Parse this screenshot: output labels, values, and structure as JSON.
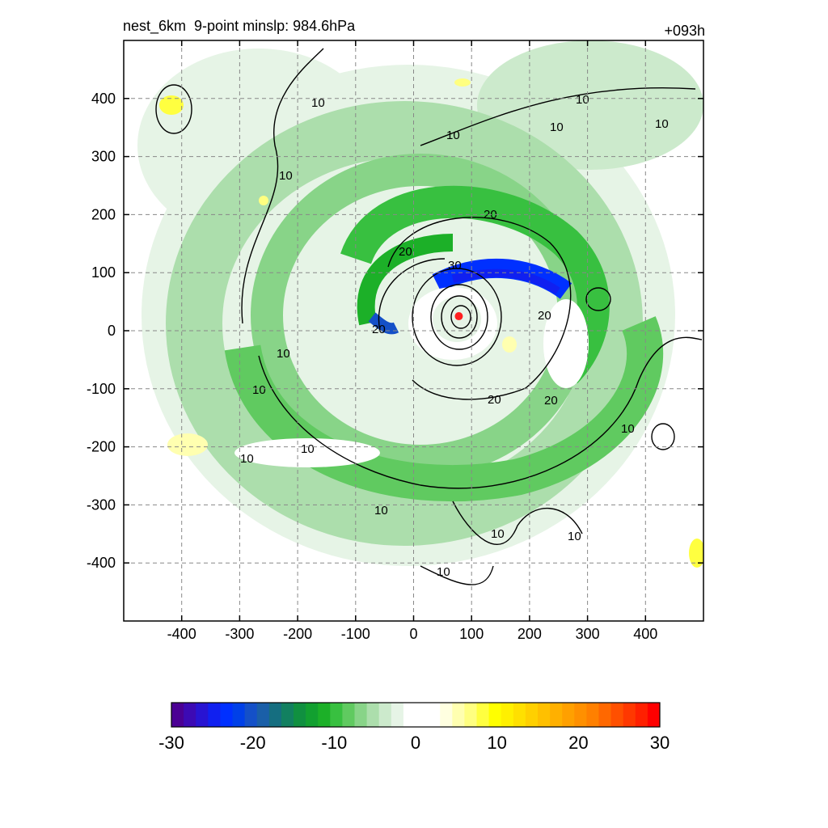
{
  "header": {
    "title": "nest_6km  9-point minslp: 984.6hPa",
    "forecast_hour": "+093h"
  },
  "chart_data": {
    "type": "heatmap",
    "xlim": [
      -500,
      500
    ],
    "ylim": [
      -500,
      500
    ],
    "x_ticks": [
      -400,
      -300,
      -200,
      -100,
      0,
      100,
      200,
      300,
      400
    ],
    "y_ticks": [
      -400,
      -300,
      -200,
      -100,
      0,
      100,
      200,
      300,
      400
    ],
    "grid": true,
    "grid_style": "dashed",
    "center_marker": {
      "x": 78,
      "y": 25,
      "color": "#ff2020"
    },
    "contour_labels": [
      "10",
      "20",
      "30"
    ],
    "colorbar": {
      "ticks": [
        -30,
        -20,
        -10,
        0,
        10,
        20,
        30
      ],
      "colors": [
        "#4b0094",
        "#3c0ab4",
        "#2814d2",
        "#1020f0",
        "#0030ff",
        "#0040e8",
        "#1450c8",
        "#1a5fa8",
        "#156e80",
        "#128060",
        "#109040",
        "#12a030",
        "#1cb028",
        "#38c040",
        "#60ca60",
        "#88d488",
        "#acdeac",
        "#cceacc",
        "#e6f4e6",
        "#ffffff",
        "#ffffff",
        "#ffffff",
        "#ffffe0",
        "#ffffb0",
        "#ffff80",
        "#ffff40",
        "#ffff00",
        "#fff000",
        "#ffe000",
        "#ffd000",
        "#ffc000",
        "#ffb000",
        "#ffa000",
        "#ff9000",
        "#ff8000",
        "#ff6800",
        "#ff5000",
        "#ff3800",
        "#ff2000",
        "#ff0000"
      ]
    }
  }
}
